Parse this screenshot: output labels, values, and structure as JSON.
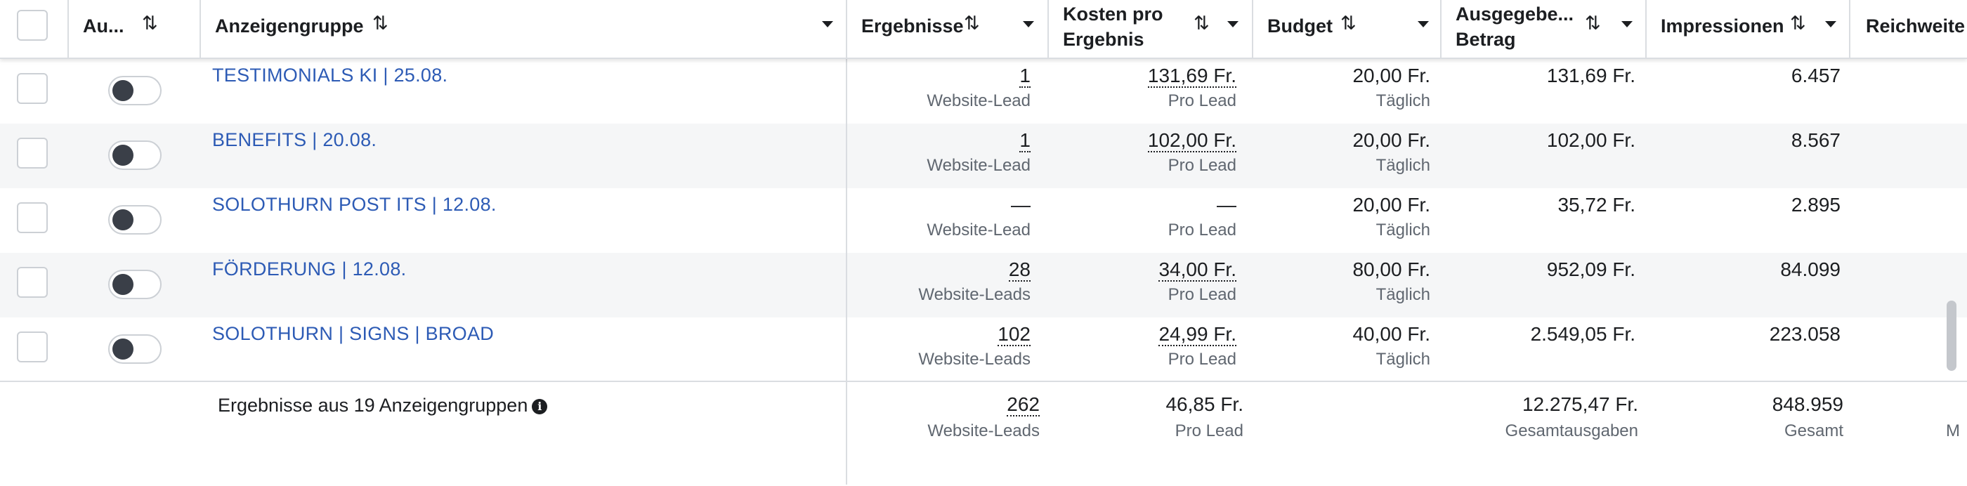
{
  "header": {
    "status_col": "Au...",
    "name_col": "Anzeigengruppe",
    "results_col": "Ergebnisse",
    "cost_col_line1": "Kosten pro",
    "cost_col_line2": "Ergebnis",
    "budget_col": "Budget",
    "spent_col_line1": "Ausgegebe...",
    "spent_col_line2": "Betrag",
    "impressions_col": "Impressionen",
    "reach_col": "Reichweite",
    "sort_glyph": "⇅"
  },
  "rows": [
    {
      "name": "TESTIMONIALS KI | 25.08.",
      "results": "1",
      "results_sub": "Website-Lead",
      "cost": "131,69 Fr.",
      "cost_sub": "Pro Lead",
      "budget": "20,00 Fr.",
      "budget_sub": "Täglich",
      "spent": "131,69 Fr.",
      "impressions": "6.457"
    },
    {
      "name": "BENEFITS | 20.08.",
      "results": "1",
      "results_sub": "Website-Lead",
      "cost": "102,00 Fr.",
      "cost_sub": "Pro Lead",
      "budget": "20,00 Fr.",
      "budget_sub": "Täglich",
      "spent": "102,00 Fr.",
      "impressions": "8.567"
    },
    {
      "name": "SOLOTHURN POST ITS | 12.08.",
      "results": "—",
      "results_sub": "Website-Lead",
      "cost": "—",
      "cost_sub": "Pro Lead",
      "budget": "20,00 Fr.",
      "budget_sub": "Täglich",
      "spent": "35,72 Fr.",
      "impressions": "2.895"
    },
    {
      "name": "FÖRDERUNG | 12.08.",
      "results": "28",
      "results_sub": "Website-Leads",
      "cost": "34,00 Fr.",
      "cost_sub": "Pro Lead",
      "budget": "80,00 Fr.",
      "budget_sub": "Täglich",
      "spent": "952,09 Fr.",
      "impressions": "84.099"
    },
    {
      "name": "SOLOTHURN | SIGNS | BROAD",
      "results": "102",
      "results_sub": "Website-Leads",
      "cost": "24,99 Fr.",
      "cost_sub": "Pro Lead",
      "budget": "40,00 Fr.",
      "budget_sub": "Täglich",
      "spent": "2.549,05 Fr.",
      "impressions": "223.058"
    }
  ],
  "footer": {
    "label": "Ergebnisse aus 19 Anzeigengruppen",
    "info_glyph": "i",
    "results": "262",
    "results_sub": "Website-Leads",
    "cost": "46,85 Fr.",
    "cost_sub": "Pro Lead",
    "spent": "12.275,47 Fr.",
    "spent_sub": "Gesamtausgaben",
    "impressions": "848.959",
    "impressions_sub": "Gesamt",
    "reach_sub": "M"
  }
}
